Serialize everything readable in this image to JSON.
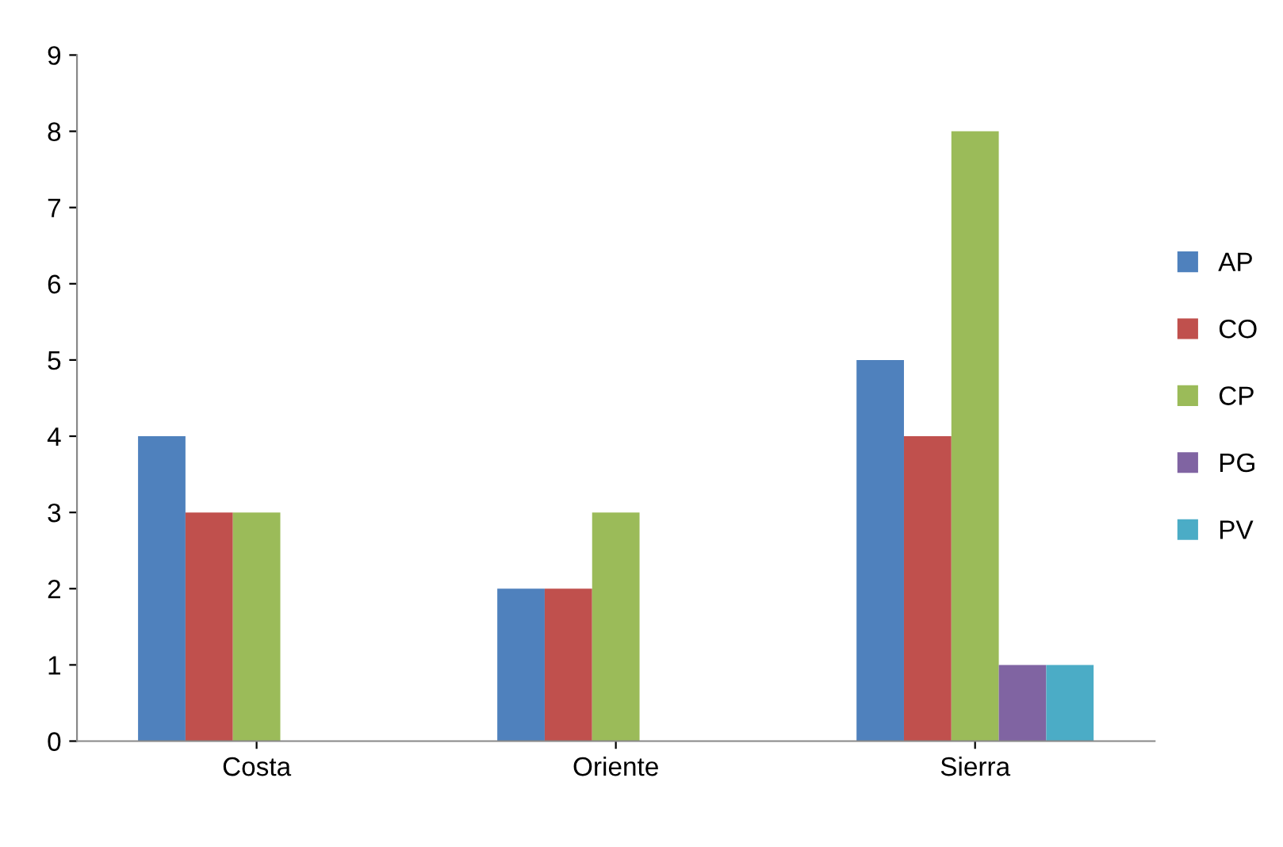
{
  "chart_data": {
    "type": "bar",
    "categories": [
      "Costa",
      "Oriente",
      "Sierra"
    ],
    "series": [
      {
        "name": "AP",
        "color": "#4f81bd",
        "values": [
          4,
          2,
          5
        ]
      },
      {
        "name": "CO",
        "color": "#c0504d",
        "values": [
          3,
          2,
          4
        ]
      },
      {
        "name": "CP",
        "color": "#9bbb59",
        "values": [
          3,
          3,
          8
        ]
      },
      {
        "name": "PG",
        "color": "#8064a2",
        "values": [
          0,
          0,
          1
        ]
      },
      {
        "name": "PV",
        "color": "#4bacc6",
        "values": [
          0,
          0,
          1
        ]
      }
    ],
    "ylim": [
      0,
      9
    ],
    "yticks": [
      0,
      1,
      2,
      3,
      4,
      5,
      6,
      7,
      8,
      9
    ],
    "grid": false,
    "legend": "right"
  }
}
